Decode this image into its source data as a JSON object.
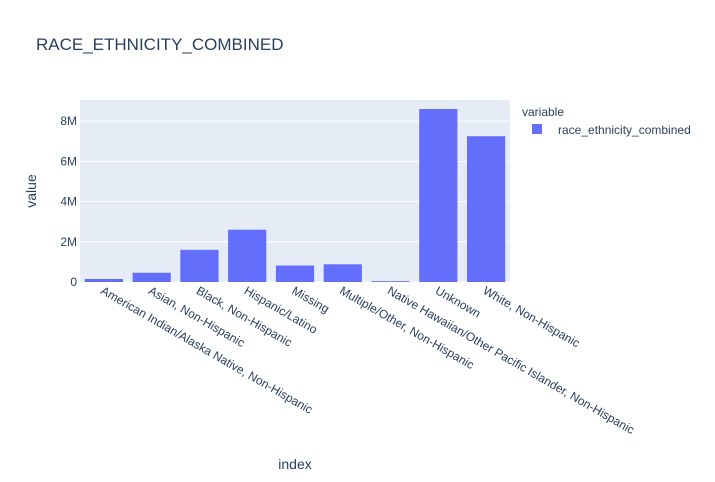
{
  "chart_data": {
    "type": "bar",
    "title": "RACE_ETHNICITY_COMBINED",
    "xlabel": "index",
    "ylabel": "value",
    "categories": [
      "American Indian/Alaska Native, Non-Hispanic",
      "Asian, Non-Hispanic",
      "Black, Non-Hispanic",
      "Hispanic/Latino",
      "Missing",
      "Multiple/Other, Non-Hispanic",
      "Native Hawaiian/Other Pacific Islander, Non-Hispanic",
      "Unknown",
      "White, Non-Hispanic"
    ],
    "series": [
      {
        "name": "race_ethnicity_combined",
        "color": "#636efa",
        "values": [
          150000,
          460000,
          1600000,
          2600000,
          820000,
          880000,
          40000,
          8600000,
          7250000
        ]
      }
    ],
    "ylim": [
      0,
      9050000
    ],
    "yticks": [
      0,
      2000000,
      4000000,
      6000000,
      8000000
    ],
    "ytick_labels": [
      "0",
      "2M",
      "4M",
      "6M",
      "8M"
    ],
    "grid": true,
    "legend": {
      "title": "variable",
      "position": "top-right"
    },
    "colors": {
      "plot_bg": "#e5ecf6",
      "grid": "#ffffff",
      "text": "#2a3f5f",
      "bar": "#636efa"
    }
  }
}
